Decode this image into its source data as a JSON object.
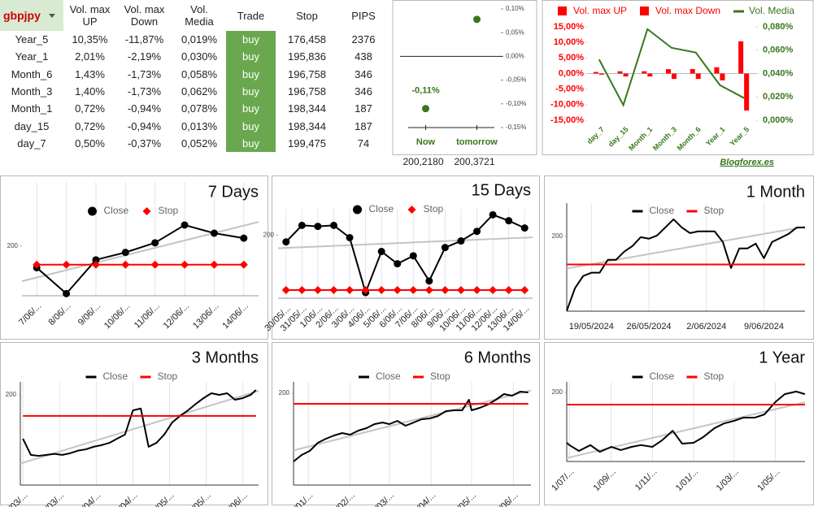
{
  "table": {
    "columns": [
      "gbpjpy",
      "Vol. max UP",
      "Vol. max Down",
      "Vol. Media",
      "Trade",
      "Stop",
      "PIPS"
    ],
    "rows": [
      [
        "Year_5",
        "10,35%",
        "-11,87%",
        "0,019%",
        "buy",
        "176,458",
        "2376"
      ],
      [
        "Year_1",
        "2,01%",
        "-2,19%",
        "0,030%",
        "buy",
        "195,836",
        "438"
      ],
      [
        "Month_6",
        "1,43%",
        "-1,73%",
        "0,058%",
        "buy",
        "196,758",
        "346"
      ],
      [
        "Month_3",
        "1,40%",
        "-1,73%",
        "0,062%",
        "buy",
        "196,758",
        "346"
      ],
      [
        "Month_1",
        "0,72%",
        "-0,94%",
        "0,078%",
        "buy",
        "198,344",
        "187"
      ],
      [
        "day_15",
        "0,72%",
        "-0,94%",
        "0,013%",
        "buy",
        "198,344",
        "187"
      ],
      [
        "day_7",
        "0,50%",
        "-0,37%",
        "0,052%",
        "buy",
        "199,475",
        "74"
      ]
    ]
  },
  "chart_data": [
    {
      "type": "dot",
      "categories": [
        "Now",
        "tomorrow"
      ],
      "values": [
        -0.11,
        0.078
      ],
      "value_labels": [
        "-0,11%",
        null
      ],
      "color": "#38761d",
      "prices": [
        "200,2180",
        "200,3721"
      ],
      "ylim": [
        -0.15,
        0.1
      ],
      "yticks": [
        {
          "value": 0.1,
          "label": "0,10%"
        },
        {
          "value": 0.05,
          "label": "0,05%"
        },
        {
          "value": 0,
          "label": "0,00%"
        },
        {
          "value": -0.05,
          "label": "-0,05%"
        },
        {
          "value": -0.1,
          "label": "-0,10%"
        },
        {
          "value": -0.15,
          "label": "-0,15%"
        }
      ]
    },
    {
      "type": "bar",
      "categories": [
        "day_7",
        "day_15",
        "Month_1",
        "Month_3",
        "Month_6",
        "Year_1",
        "Year_5"
      ],
      "series": [
        {
          "name": "Vol. max UP",
          "color": "#ff0000",
          "values": [
            0.5,
            0.72,
            0.72,
            1.4,
            1.43,
            2.01,
            10.35
          ]
        },
        {
          "name": "Vol. max Down",
          "color": "#ff0000",
          "values": [
            -0.37,
            -0.94,
            -0.94,
            -1.73,
            -1.73,
            -2.19,
            -11.87
          ]
        },
        {
          "name": "Vol. Media",
          "color": "#38761d",
          "type": "line",
          "axis": "y2",
          "values": [
            0.052,
            0.013,
            0.078,
            0.062,
            0.058,
            0.03,
            0.019
          ]
        }
      ],
      "ylim": [
        -15,
        15
      ],
      "yticks": [
        {
          "value": 15,
          "label": "15,00%"
        },
        {
          "value": 10,
          "label": "10,00%"
        },
        {
          "value": 5,
          "label": "5,00%"
        },
        {
          "value": 0,
          "label": "0,00%"
        },
        {
          "value": -5,
          "label": "-5,00%"
        },
        {
          "value": -10,
          "label": "-10,00%"
        },
        {
          "value": -15,
          "label": "-15,00%"
        }
      ],
      "y2lim": [
        0,
        0.08
      ],
      "y2ticks": [
        {
          "value": 0.08,
          "label": "0,080%"
        },
        {
          "value": 0.06,
          "label": "0,060%"
        },
        {
          "value": 0.04,
          "label": "0,040%"
        },
        {
          "value": 0.02,
          "label": "0,020%"
        },
        {
          "value": 0,
          "label": "0,000%"
        }
      ],
      "annotation": "Blogforex.es"
    },
    {
      "type": "line",
      "title": "7 Days",
      "markers": true,
      "xgrid": true,
      "trendline_color": "#c4c4c4",
      "categories": [
        "7/06/...",
        "8/06/...",
        "9/06/...",
        "10/06/...",
        "11/06/...",
        "12/06/...",
        "13/06/...",
        "14/06/..."
      ],
      "series": [
        {
          "name": "Close",
          "color": "#000000",
          "marker": "circle",
          "values": [
            199.39,
            198.66,
            199.61,
            199.82,
            200.09,
            200.59,
            200.36,
            200.22
          ]
        },
        {
          "name": "Stop",
          "color": "#ff0000",
          "marker": "diamond",
          "values": [
            199.475,
            199.475,
            199.475,
            199.475,
            199.475,
            199.475,
            199.475,
            199.475
          ]
        }
      ],
      "ylim": [
        198.6,
        201.8
      ],
      "yticks": [
        200
      ]
    },
    {
      "type": "line",
      "title": "15 Days",
      "markers": true,
      "xgrid": true,
      "trendline_color": "#c4c4c4",
      "categories": [
        "30/05/...",
        "31/05/...",
        "1/06/...",
        "2/06/...",
        "3/06/...",
        "4/06/...",
        "5/06/...",
        "6/06/...",
        "7/06/...",
        "8/06/...",
        "9/06/...",
        "10/06/...",
        "11/06/...",
        "12/06/...",
        "13/06/...",
        "14/06/..."
      ],
      "series": [
        {
          "name": "Close",
          "color": "#000000",
          "marker": "circle",
          "values": [
            199.8,
            200.3,
            200.27,
            200.3,
            199.93,
            198.27,
            199.51,
            199.14,
            199.38,
            198.62,
            199.63,
            199.83,
            200.12,
            200.62,
            200.44,
            200.22
          ]
        },
        {
          "name": "Stop",
          "color": "#ff0000",
          "marker": "diamond",
          "values": [
            198.344,
            198.344,
            198.344,
            198.344,
            198.344,
            198.344,
            198.344,
            198.344,
            198.344,
            198.344,
            198.344,
            198.344,
            198.344,
            198.344,
            198.344,
            198.344
          ]
        }
      ],
      "ylim": [
        198.1,
        200.8
      ],
      "yticks": [
        200
      ]
    },
    {
      "type": "line",
      "title": "1 Month",
      "xgrid": true,
      "trendline_color": "#c4c4c4",
      "x": [
        "2024-05-16",
        "2024-05-17",
        "2024-05-18",
        "2024-05-19",
        "2024-05-20",
        "2024-05-21",
        "2024-05-22",
        "2024-05-23",
        "2024-05-24",
        "2024-05-25",
        "2024-05-26",
        "2024-05-27",
        "2024-05-28",
        "2024-05-29",
        "2024-05-30",
        "2024-05-31",
        "2024-06-01",
        "2024-06-02",
        "2024-06-03",
        "2024-06-04",
        "2024-06-05",
        "2024-06-06",
        "2024-06-07",
        "2024-06-08",
        "2024-06-09",
        "2024-06-10",
        "2024-06-11",
        "2024-06-12",
        "2024-06-13",
        "2024-06-14"
      ],
      "series": [
        {
          "name": "Close",
          "color": "#000000",
          "values": [
            195.62,
            196.95,
            197.67,
            197.86,
            197.86,
            198.62,
            198.62,
            199.1,
            199.43,
            199.95,
            199.86,
            200.05,
            200.52,
            201.0,
            200.52,
            200.19,
            200.29,
            200.29,
            200.29,
            199.67,
            198.14,
            199.29,
            199.29,
            199.57,
            198.71,
            199.67,
            199.9,
            200.14,
            200.52,
            200.52
          ]
        },
        {
          "name": "Stop",
          "color": "#ff0000",
          "values": [
            198.344,
            198.344,
            198.344,
            198.344,
            198.344,
            198.344,
            198.344,
            198.344,
            198.344,
            198.344,
            198.344,
            198.344,
            198.344,
            198.344,
            198.344,
            198.344,
            198.344,
            198.344,
            198.344,
            198.344,
            198.344,
            198.344,
            198.344,
            198.344,
            198.344,
            198.344,
            198.344,
            198.344,
            198.344,
            198.344
          ]
        }
      ],
      "xlim": [
        "2024-05-16",
        "2024-06-14"
      ],
      "xticks": [
        {
          "value": "2024-05-19",
          "label": "19/05/2024"
        },
        {
          "value": "2024-05-26",
          "label": "26/05/2024"
        },
        {
          "value": "2024-06-02",
          "label": "2/06/2024"
        },
        {
          "value": "2024-06-09",
          "label": "9/06/2024"
        }
      ],
      "ylim": [
        195.6,
        201.95
      ],
      "yticks": [
        200
      ]
    },
    {
      "type": "line",
      "title": "3 Months",
      "xgrid": true,
      "trendline_color": "#c4c4c4",
      "x": [
        "17/03",
        "20/03",
        "23/03",
        "26/03",
        "29/03",
        "1/04",
        "4/04",
        "7/04",
        "10/04",
        "13/04",
        "16/04",
        "19/04",
        "22/04",
        "25/04",
        "28/04",
        "1/05",
        "4/05",
        "7/05",
        "10/05",
        "13/05",
        "16/05",
        "19/05",
        "22/05",
        "25/05",
        "28/05",
        "31/05",
        "3/06",
        "6/06",
        "9/06",
        "12/06",
        "14/06"
      ],
      "series": [
        {
          "name": "Close",
          "color": "#000000",
          "values": [
            193.25,
            190.75,
            190.6,
            190.75,
            190.9,
            190.75,
            191.0,
            191.4,
            191.6,
            192.0,
            192.25,
            192.6,
            193.25,
            193.9,
            197.6,
            197.9,
            192.0,
            192.6,
            193.9,
            195.75,
            196.75,
            197.6,
            198.6,
            199.5,
            200.25,
            200.0,
            200.25,
            199.25,
            199.5,
            200.0,
            200.75
          ]
        },
        {
          "name": "Stop",
          "color": "#ff0000",
          "values": [
            196.758,
            196.758,
            196.758,
            196.758,
            196.758,
            196.758,
            196.758,
            196.758,
            196.758,
            196.758,
            196.758,
            196.758,
            196.758,
            196.758,
            196.758,
            196.758,
            196.758,
            196.758,
            196.758,
            196.758,
            196.758,
            196.758,
            196.758,
            196.758,
            196.758,
            196.758,
            196.758,
            196.758,
            196.758,
            196.758,
            196.758
          ]
        }
      ],
      "xlim": [
        "16/03",
        "15/06"
      ],
      "xticks": [
        {
          "value": "17/03",
          "label": "17/03/..."
        },
        {
          "value": "31/03",
          "label": "31/03/..."
        },
        {
          "value": "14/04",
          "label": "14/04/..."
        },
        {
          "value": "28/04",
          "label": "28/04/..."
        },
        {
          "value": "12/05",
          "label": "12/05/..."
        },
        {
          "value": "26/05",
          "label": "26/05/..."
        },
        {
          "value": "9/06",
          "label": "9/06/..."
        }
      ],
      "ylim": [
        186.1,
        202
      ],
      "yticks": [
        200
      ]
    },
    {
      "type": "line",
      "title": "6 Months",
      "xgrid": true,
      "trendline_color": "#c4c4c4",
      "x": [
        "21/12",
        "27/12",
        "2/01",
        "8/01",
        "14/01",
        "20/01",
        "26/01",
        "1/02",
        "7/02",
        "13/02",
        "19/02",
        "25/02",
        "1/03",
        "7/03",
        "13/03",
        "19/03",
        "25/03",
        "31/03",
        "6/04",
        "12/04",
        "18/04",
        "24/04",
        "29/04",
        "1/05",
        "7/05",
        "13/05",
        "19/05",
        "25/05",
        "31/05",
        "6/06",
        "12/06"
      ],
      "series": [
        {
          "name": "Close",
          "color": "#000000",
          "values": [
            179.0,
            181.0,
            182.25,
            184.75,
            186.0,
            187.0,
            187.75,
            187.25,
            188.5,
            189.25,
            190.5,
            191.0,
            190.5,
            191.5,
            190.0,
            191.0,
            192.0,
            192.25,
            193.0,
            194.5,
            194.75,
            194.75,
            198.0,
            194.75,
            195.5,
            196.5,
            198.0,
            199.75,
            199.25,
            200.5,
            200.25
          ]
        },
        {
          "name": "Stop",
          "color": "#ff0000",
          "values": [
            196.758,
            196.758,
            196.758,
            196.758,
            196.758,
            196.758,
            196.758,
            196.758,
            196.758,
            196.758,
            196.758,
            196.758,
            196.758,
            196.758,
            196.758,
            196.758,
            196.758,
            196.758,
            196.758,
            196.758,
            196.758,
            196.758,
            196.758,
            196.758,
            196.758,
            196.758,
            196.758,
            196.758,
            196.758,
            196.758,
            196.758
          ]
        }
      ],
      "xlim": [
        "21/12",
        "14/06"
      ],
      "xticks": [
        {
          "value": "1/01",
          "label": "1/01/..."
        },
        {
          "value": "1/02",
          "label": "1/02/..."
        },
        {
          "value": "1/03",
          "label": "1/03/..."
        },
        {
          "value": "1/04",
          "label": "1/04/..."
        },
        {
          "value": "1/05",
          "label": "1/05/..."
        },
        {
          "value": "1/06",
          "label": "1/06/..."
        }
      ],
      "ylim": [
        171.75,
        203.5
      ],
      "yticks": [
        200
      ]
    },
    {
      "type": "line",
      "title": "1 Year",
      "xgrid": true,
      "trendline_color": "#c4c4c4",
      "x": [
        "27/06",
        "1/07",
        "15/07",
        "1/08",
        "15/08",
        "1/09",
        "15/09",
        "1/10",
        "15/10",
        "1/11",
        "15/11",
        "1/12",
        "15/12",
        "1/01",
        "15/01",
        "1/02",
        "15/02",
        "1/03",
        "15/03",
        "1/04",
        "15/04",
        "1/05",
        "15/05",
        "1/06",
        "14/06"
      ],
      "series": [
        {
          "name": "Close",
          "color": "#000000",
          "values": [
            182.8,
            182.0,
            180.0,
            182.0,
            179.7,
            181.4,
            180.3,
            181.4,
            182.0,
            181.4,
            183.6,
            186.9,
            182.5,
            182.8,
            184.7,
            187.8,
            189.4,
            190.3,
            191.4,
            191.4,
            192.5,
            196.7,
            199.4,
            200.3,
            199.4
          ]
        },
        {
          "name": "Stop",
          "color": "#ff0000",
          "values": [
            195.836,
            195.836,
            195.836,
            195.836,
            195.836,
            195.836,
            195.836,
            195.836,
            195.836,
            195.836,
            195.836,
            195.836,
            195.836,
            195.836,
            195.836,
            195.836,
            195.836,
            195.836,
            195.836,
            195.836,
            195.836,
            195.836,
            195.836,
            195.836,
            195.836
          ]
        }
      ],
      "xlim": [
        "27/06",
        "14/06"
      ],
      "xticks": [
        {
          "value": "1/07",
          "label": "1/07/..."
        },
        {
          "value": "1/09",
          "label": "1/09/..."
        },
        {
          "value": "1/11",
          "label": "1/11/..."
        },
        {
          "value": "1/01",
          "label": "1/01/..."
        },
        {
          "value": "1/03",
          "label": "1/03/..."
        },
        {
          "value": "1/05",
          "label": "1/05/..."
        }
      ],
      "ylim": [
        176.4,
        203.6
      ],
      "yticks": [
        200
      ]
    }
  ]
}
